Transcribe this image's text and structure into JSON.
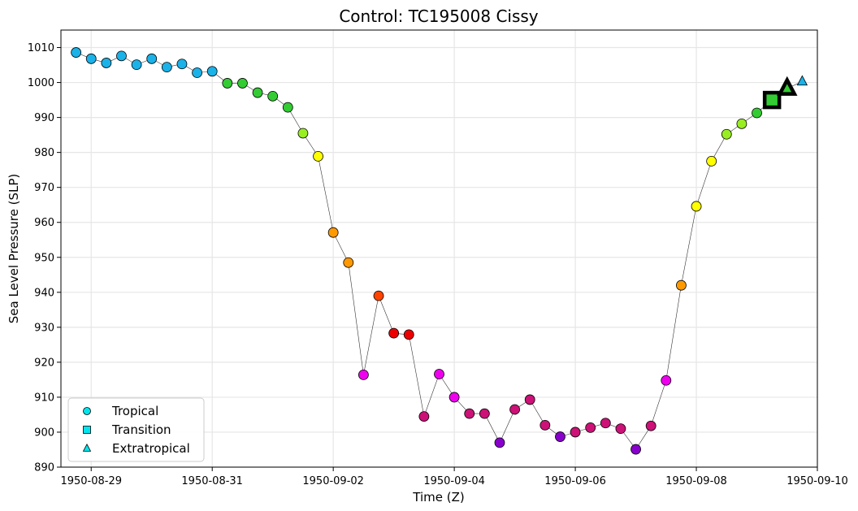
{
  "chart_data": {
    "type": "scatter",
    "title": "Control: TC195008 Cissy",
    "xlabel": "Time (Z)",
    "ylabel": "Sea Level Pressure (SLP)",
    "xlim": [
      "1950-08-28T12:00",
      "1950-09-10T00:00"
    ],
    "ylim": [
      890,
      1015
    ],
    "x_ticks": [
      "1950-08-29",
      "1950-08-31",
      "1950-09-02",
      "1950-09-04",
      "1950-09-06",
      "1950-09-08",
      "1950-09-10"
    ],
    "y_ticks": [
      890,
      900,
      910,
      920,
      930,
      940,
      950,
      960,
      970,
      980,
      990,
      1000,
      1010
    ],
    "grid": true,
    "connecting_line": true,
    "legend": {
      "placement": "bottom-left",
      "entries": [
        {
          "label": "Tropical",
          "marker": "circle",
          "color": "#00e5ee"
        },
        {
          "label": "Transition",
          "marker": "square",
          "color": "#00e5ee"
        },
        {
          "label": "Extratropical",
          "marker": "triangle",
          "color": "#00e5ee"
        }
      ]
    },
    "points": [
      {
        "x": "1950-08-28T18:00",
        "y": 1008.6,
        "marker": "circle",
        "color": "#1ab2e8"
      },
      {
        "x": "1950-08-29T00:00",
        "y": 1006.8,
        "marker": "circle",
        "color": "#1ab2e8"
      },
      {
        "x": "1950-08-29T06:00",
        "y": 1005.6,
        "marker": "circle",
        "color": "#1ab2e8"
      },
      {
        "x": "1950-08-29T12:00",
        "y": 1007.6,
        "marker": "circle",
        "color": "#1ab2e8"
      },
      {
        "x": "1950-08-29T18:00",
        "y": 1005.1,
        "marker": "circle",
        "color": "#1ab2e8"
      },
      {
        "x": "1950-08-30T00:00",
        "y": 1006.8,
        "marker": "circle",
        "color": "#1ab2e8"
      },
      {
        "x": "1950-08-30T06:00",
        "y": 1004.4,
        "marker": "circle",
        "color": "#1ab2e8"
      },
      {
        "x": "1950-08-30T12:00",
        "y": 1005.3,
        "marker": "circle",
        "color": "#1ab2e8"
      },
      {
        "x": "1950-08-30T18:00",
        "y": 1002.8,
        "marker": "circle",
        "color": "#1ab2e8"
      },
      {
        "x": "1950-08-31T00:00",
        "y": 1003.2,
        "marker": "circle",
        "color": "#1ab2e8"
      },
      {
        "x": "1950-08-31T06:00",
        "y": 999.8,
        "marker": "circle",
        "color": "#33cc33"
      },
      {
        "x": "1950-08-31T12:00",
        "y": 999.8,
        "marker": "circle",
        "color": "#33cc33"
      },
      {
        "x": "1950-08-31T18:00",
        "y": 997.1,
        "marker": "circle",
        "color": "#33cc33"
      },
      {
        "x": "1950-09-01T00:00",
        "y": 996.1,
        "marker": "circle",
        "color": "#33cc33"
      },
      {
        "x": "1950-09-01T06:00",
        "y": 992.9,
        "marker": "circle",
        "color": "#33cc33"
      },
      {
        "x": "1950-09-01T12:00",
        "y": 985.5,
        "marker": "circle",
        "color": "#99ee22"
      },
      {
        "x": "1950-09-01T18:00",
        "y": 978.9,
        "marker": "circle",
        "color": "#ffff00"
      },
      {
        "x": "1950-09-02T00:00",
        "y": 957.1,
        "marker": "circle",
        "color": "#ff9900"
      },
      {
        "x": "1950-09-02T06:00",
        "y": 948.5,
        "marker": "circle",
        "color": "#ff9900"
      },
      {
        "x": "1950-09-02T12:00",
        "y": 916.4,
        "marker": "circle",
        "color": "#ee00ee"
      },
      {
        "x": "1950-09-02T18:00",
        "y": 939.0,
        "marker": "circle",
        "color": "#ff4400"
      },
      {
        "x": "1950-09-03T00:00",
        "y": 928.3,
        "marker": "circle",
        "color": "#ee0000"
      },
      {
        "x": "1950-09-03T06:00",
        "y": 927.9,
        "marker": "circle",
        "color": "#ee0000"
      },
      {
        "x": "1950-09-03T12:00",
        "y": 904.5,
        "marker": "circle",
        "color": "#cc1177"
      },
      {
        "x": "1950-09-03T18:00",
        "y": 916.6,
        "marker": "circle",
        "color": "#ee00ee"
      },
      {
        "x": "1950-09-04T00:00",
        "y": 910.0,
        "marker": "circle",
        "color": "#ee00ee"
      },
      {
        "x": "1950-09-04T06:00",
        "y": 905.3,
        "marker": "circle",
        "color": "#cc1177"
      },
      {
        "x": "1950-09-04T12:00",
        "y": 905.3,
        "marker": "circle",
        "color": "#cc1177"
      },
      {
        "x": "1950-09-04T18:00",
        "y": 897.0,
        "marker": "circle",
        "color": "#8800cc"
      },
      {
        "x": "1950-09-05T00:00",
        "y": 906.5,
        "marker": "circle",
        "color": "#cc1177"
      },
      {
        "x": "1950-09-05T06:00",
        "y": 909.3,
        "marker": "circle",
        "color": "#cc1177"
      },
      {
        "x": "1950-09-05T12:00",
        "y": 902.0,
        "marker": "circle",
        "color": "#cc1177"
      },
      {
        "x": "1950-09-05T18:00",
        "y": 898.7,
        "marker": "circle",
        "color": "#8800cc"
      },
      {
        "x": "1950-09-06T00:00",
        "y": 900.0,
        "marker": "circle",
        "color": "#cc1177"
      },
      {
        "x": "1950-09-06T06:00",
        "y": 901.3,
        "marker": "circle",
        "color": "#cc1177"
      },
      {
        "x": "1950-09-06T12:00",
        "y": 902.6,
        "marker": "circle",
        "color": "#cc1177"
      },
      {
        "x": "1950-09-06T18:00",
        "y": 901.0,
        "marker": "circle",
        "color": "#cc1177"
      },
      {
        "x": "1950-09-07T00:00",
        "y": 895.1,
        "marker": "circle",
        "color": "#8800cc"
      },
      {
        "x": "1950-09-07T06:00",
        "y": 901.8,
        "marker": "circle",
        "color": "#cc1177"
      },
      {
        "x": "1950-09-07T12:00",
        "y": 914.8,
        "marker": "circle",
        "color": "#ee00ee"
      },
      {
        "x": "1950-09-07T18:00",
        "y": 942.0,
        "marker": "circle",
        "color": "#ff9900"
      },
      {
        "x": "1950-09-08T00:00",
        "y": 964.6,
        "marker": "circle",
        "color": "#ffff00"
      },
      {
        "x": "1950-09-08T06:00",
        "y": 977.5,
        "marker": "circle",
        "color": "#ffff00"
      },
      {
        "x": "1950-09-08T12:00",
        "y": 985.2,
        "marker": "circle",
        "color": "#99ee22"
      },
      {
        "x": "1950-09-08T18:00",
        "y": 988.2,
        "marker": "circle",
        "color": "#99ee22"
      },
      {
        "x": "1950-09-09T00:00",
        "y": 991.3,
        "marker": "circle",
        "color": "#33cc33"
      },
      {
        "x": "1950-09-09T06:00",
        "y": 995.0,
        "marker": "square",
        "color": "#33cc33",
        "highlight": true
      },
      {
        "x": "1950-09-09T12:00",
        "y": 998.3,
        "marker": "triangle",
        "color": "#33cc33",
        "highlight": true
      },
      {
        "x": "1950-09-09T18:00",
        "y": 1000.3,
        "marker": "triangle",
        "color": "#1ab2e8"
      }
    ]
  }
}
